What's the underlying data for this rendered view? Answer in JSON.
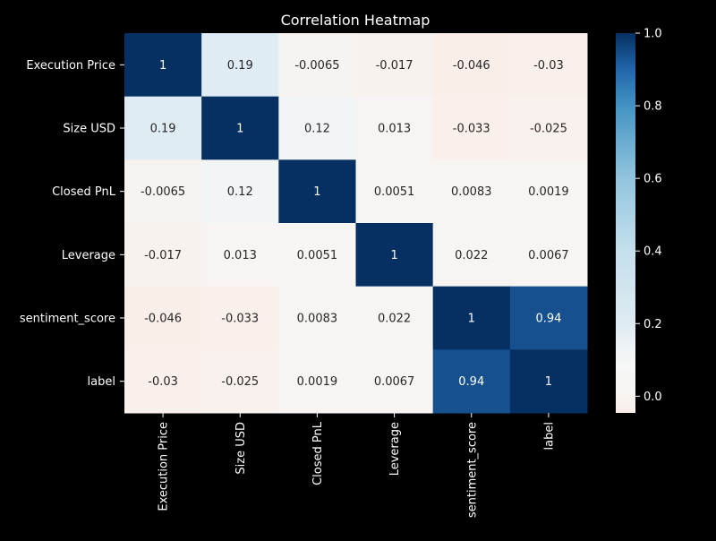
{
  "chart_data": {
    "type": "heatmap",
    "title": "Correlation Heatmap",
    "xlabel": "",
    "ylabel": "",
    "row_labels": [
      "Execution Price",
      "Size USD",
      "Closed PnL",
      "Leverage",
      "sentiment_score",
      "label"
    ],
    "col_labels": [
      "Execution Price",
      "Size USD",
      "Closed PnL",
      "Leverage",
      "sentiment_score",
      "label"
    ],
    "matrix": [
      [
        1,
        0.19,
        -0.0065,
        -0.017,
        -0.046,
        -0.03
      ],
      [
        0.19,
        1,
        0.12,
        0.013,
        -0.033,
        -0.025
      ],
      [
        -0.0065,
        0.12,
        1,
        0.0051,
        0.0083,
        0.0019
      ],
      [
        -0.017,
        0.013,
        0.0051,
        1,
        0.022,
        0.0067
      ],
      [
        -0.046,
        -0.033,
        0.0083,
        0.022,
        1,
        0.94
      ],
      [
        -0.03,
        -0.025,
        0.0019,
        0.0067,
        0.94,
        1
      ]
    ],
    "annotations": [
      [
        "1",
        "0.19",
        "-0.0065",
        "-0.017",
        "-0.046",
        "-0.03"
      ],
      [
        "0.19",
        "1",
        "0.12",
        "0.013",
        "-0.033",
        "-0.025"
      ],
      [
        "-0.0065",
        "0.12",
        "1",
        "0.0051",
        "0.0083",
        "0.0019"
      ],
      [
        "-0.017",
        "0.013",
        "0.0051",
        "1",
        "0.022",
        "0.0067"
      ],
      [
        "-0.046",
        "-0.033",
        "0.0083",
        "0.022",
        "1",
        "0.94"
      ],
      [
        "-0.03",
        "-0.025",
        "0.0019",
        "0.0067",
        "0.94",
        "1"
      ]
    ],
    "colormap": "RdBu",
    "vmin": -0.046,
    "vmax": 1,
    "colorbar_ticks": [
      0.0,
      0.2,
      0.4,
      0.6,
      0.8,
      1.0
    ],
    "colorbar_tick_labels": [
      "0.0",
      "0.2",
      "0.4",
      "0.6",
      "0.8",
      "1.0"
    ],
    "colors": {
      "background": "#000000",
      "text": "#ffffff",
      "annotation_dark": "#262626",
      "annotation_light": "#ffffff"
    }
  }
}
